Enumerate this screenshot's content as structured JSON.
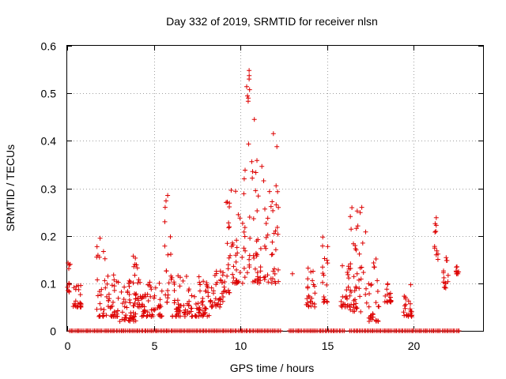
{
  "chart_data": {
    "type": "scatter",
    "title": "Day 332 of 2019, SRMTID for receiver nlsn",
    "xlabel": "GPS time / hours",
    "ylabel": "SRMTID / TECUs",
    "xlim": [
      0,
      24.0
    ],
    "ylim": [
      0,
      0.6
    ],
    "xticks": [
      0,
      5,
      10,
      15,
      20
    ],
    "yticks": [
      0,
      0.1,
      0.2,
      0.3,
      0.4,
      0.5,
      0.6
    ],
    "xtick_labels": [
      "0",
      "5",
      "10",
      "15",
      "20"
    ],
    "ytick_labels": [
      "0",
      "0.1",
      "0.2",
      "0.3",
      "0.4",
      "0.5",
      "0.6"
    ],
    "grid": true,
    "marker": "plus",
    "series": [
      {
        "name": "SRMTID",
        "color": "#dd0000",
        "clusters": [
          {
            "x": [
              0.0,
              0.2
            ],
            "y": [
              0.08,
              0.15
            ]
          },
          {
            "x": [
              0.3,
              0.8
            ],
            "y": [
              0.05,
              0.1
            ]
          },
          {
            "x": [
              1.7,
              2.2
            ],
            "y": [
              0.03,
              0.2
            ]
          },
          {
            "x": [
              2.2,
              3.0
            ],
            "y": [
              0.03,
              0.12
            ]
          },
          {
            "x": [
              3.0,
              4.0
            ],
            "y": [
              0.02,
              0.11
            ]
          },
          {
            "x": [
              3.8,
              4.3
            ],
            "y": [
              0.05,
              0.16
            ]
          },
          {
            "x": [
              4.3,
              5.5
            ],
            "y": [
              0.03,
              0.11
            ]
          },
          {
            "x": [
              5.6,
              6.0
            ],
            "y": [
              0.06,
              0.29
            ]
          },
          {
            "x": [
              6.0,
              7.2
            ],
            "y": [
              0.03,
              0.12
            ]
          },
          {
            "x": [
              7.2,
              8.2
            ],
            "y": [
              0.03,
              0.12
            ]
          },
          {
            "x": [
              8.2,
              9.0
            ],
            "y": [
              0.05,
              0.13
            ]
          },
          {
            "x": [
              9.0,
              9.5
            ],
            "y": [
              0.08,
              0.32
            ]
          },
          {
            "x": [
              9.5,
              10.3
            ],
            "y": [
              0.1,
              0.35
            ]
          },
          {
            "x": [
              10.3,
              10.6
            ],
            "y": [
              0.12,
              0.55
            ]
          },
          {
            "x": [
              10.6,
              11.5
            ],
            "y": [
              0.1,
              0.38
            ]
          },
          {
            "x": [
              11.5,
              12.2
            ],
            "y": [
              0.1,
              0.42
            ]
          },
          {
            "x": [
              13.8,
              14.3
            ],
            "y": [
              0.05,
              0.15
            ]
          },
          {
            "x": [
              14.7,
              15.1
            ],
            "y": [
              0.06,
              0.21
            ]
          },
          {
            "x": [
              15.8,
              16.3
            ],
            "y": [
              0.05,
              0.14
            ]
          },
          {
            "x": [
              16.3,
              17.4
            ],
            "y": [
              0.04,
              0.26
            ]
          },
          {
            "x": [
              17.4,
              18.0
            ],
            "y": [
              0.02,
              0.16
            ]
          },
          {
            "x": [
              18.3,
              18.7
            ],
            "y": [
              0.06,
              0.1
            ]
          },
          {
            "x": [
              19.4,
              19.9
            ],
            "y": [
              0.03,
              0.1
            ]
          },
          {
            "x": [
              21.2,
              21.4
            ],
            "y": [
              0.15,
              0.24
            ]
          },
          {
            "x": [
              21.7,
              22.0
            ],
            "y": [
              0.09,
              0.17
            ]
          },
          {
            "x": [
              22.4,
              22.6
            ],
            "y": [
              0.12,
              0.14
            ]
          }
        ],
        "zero_segments": [
          [
            0.1,
            2.0
          ],
          [
            2.1,
            12.3
          ],
          [
            12.8,
            16.0
          ],
          [
            16.3,
            22.6
          ]
        ],
        "isolated_points": [
          {
            "x": 0.05,
            "y": 0.143
          },
          {
            "x": 0.1,
            "y": 0.1
          },
          {
            "x": 1.9,
            "y": 0.195
          },
          {
            "x": 5.8,
            "y": 0.285
          },
          {
            "x": 10.5,
            "y": 0.548
          },
          {
            "x": 10.5,
            "y": 0.53
          },
          {
            "x": 10.45,
            "y": 0.49
          },
          {
            "x": 10.8,
            "y": 0.445
          },
          {
            "x": 11.9,
            "y": 0.415
          },
          {
            "x": 13.0,
            "y": 0.12
          },
          {
            "x": 13.8,
            "y": 0.055
          },
          {
            "x": 17.0,
            "y": 0.26
          },
          {
            "x": 21.3,
            "y": 0.238
          },
          {
            "x": 21.3,
            "y": 0.222
          }
        ]
      }
    ]
  }
}
